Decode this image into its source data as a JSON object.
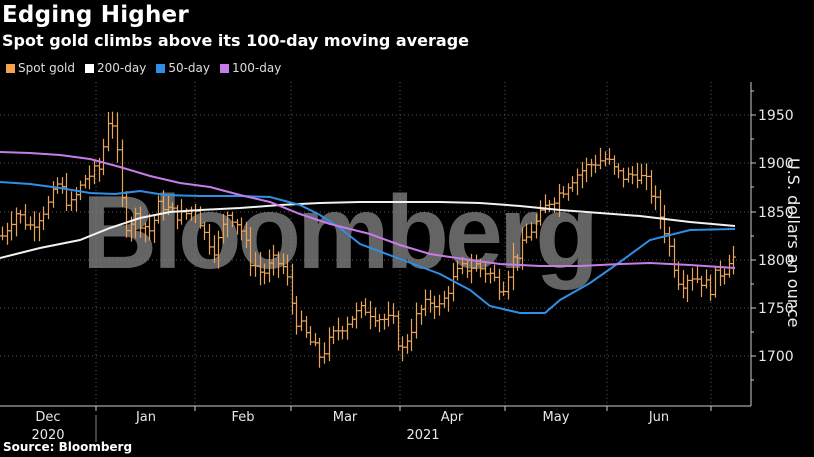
{
  "header": {
    "title": "Edging Higher",
    "subtitle": "Spot gold climbs above its 100-day moving average"
  },
  "legend": [
    {
      "label": "Spot gold",
      "color": "#f5a34a"
    },
    {
      "label": "200-day",
      "color": "#ffffff"
    },
    {
      "label": "50-day",
      "color": "#2f8ee5"
    },
    {
      "label": "100-day",
      "color": "#c77ce8"
    }
  ],
  "footer": {
    "source": "Source: Bloomberg"
  },
  "watermark": "Bloomberg",
  "chart_data": {
    "type": "line",
    "title": "Edging Higher",
    "subtitle": "Spot gold climbs above its 100-day moving average",
    "xlabel": "",
    "ylabel": "U.S. dollars an ounce",
    "ylim": [
      1650,
      1985
    ],
    "yticks": [
      1700,
      1750,
      1800,
      1850,
      1900,
      1950
    ],
    "xticks": [
      "Dec",
      "Jan",
      "Feb",
      "Mar",
      "Apr",
      "May",
      "Jun"
    ],
    "year_labels": [
      {
        "label": "2020",
        "under": "Dec"
      },
      {
        "label": "2021",
        "under": "Apr"
      }
    ],
    "grid": true,
    "legend_position": "top-left",
    "x": [
      "2020-11-20",
      "2020-12-01",
      "2020-12-15",
      "2021-01-01",
      "2021-01-06",
      "2021-01-15",
      "2021-02-01",
      "2021-02-15",
      "2021-03-01",
      "2021-03-08",
      "2021-03-15",
      "2021-03-31",
      "2021-04-15",
      "2021-05-01",
      "2021-05-15",
      "2021-06-01",
      "2021-06-15",
      "2021-06-21",
      "2021-07-01"
    ],
    "series": [
      {
        "name": "Spot gold",
        "values": [
          1835,
          1810,
          1860,
          1890,
          1955,
          1845,
          1860,
          1820,
          1730,
          1700,
          1730,
          1710,
          1770,
          1790,
          1860,
          1900,
          1810,
          1780,
          1800
        ]
      },
      {
        "name": "200-day",
        "values": [
          1801,
          1810,
          1825,
          1838,
          1843,
          1850,
          1855,
          1858,
          1860,
          1860,
          1860,
          1860,
          1860,
          1858,
          1852,
          1845,
          1840,
          1833,
          1830
        ]
      },
      {
        "name": "50-day",
        "values": [
          1880,
          1875,
          1870,
          1868,
          1870,
          1860,
          1853,
          1855,
          1840,
          1810,
          1780,
          1760,
          1745,
          1745,
          1775,
          1815,
          1832,
          1834,
          1834
        ]
      },
      {
        "name": "100-day",
        "values": [
          1910,
          1908,
          1905,
          1890,
          1883,
          1870,
          1850,
          1840,
          1822,
          1810,
          1800,
          1795,
          1795,
          1792,
          1790,
          1795,
          1795,
          1790,
          1790
        ]
      }
    ]
  }
}
